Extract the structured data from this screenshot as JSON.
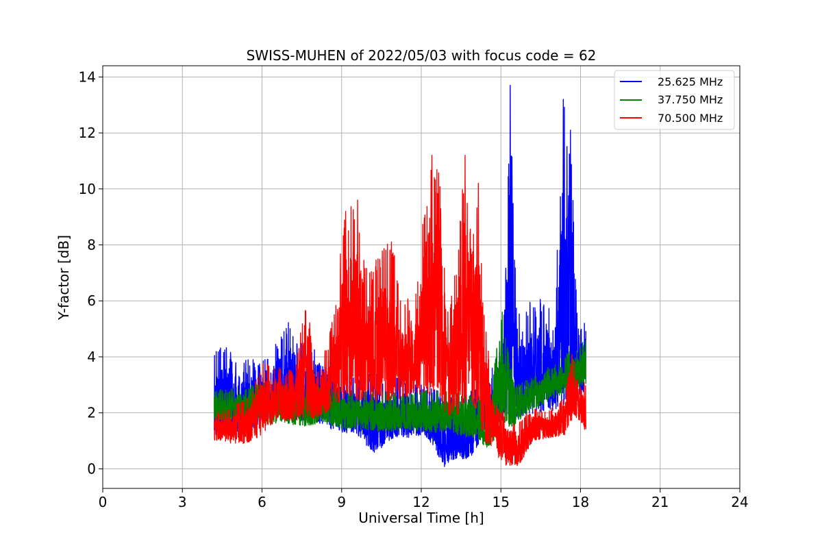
{
  "chart_data": {
    "type": "line",
    "title": "SWISS-MUHEN of 2022/05/03 with focus code = 62",
    "xlabel": "Universal Time [h]",
    "ylabel": "Y-factor [dB]",
    "xlim": [
      0,
      24
    ],
    "ylim": [
      -0.7,
      14.4
    ],
    "x_ticks": [
      "0",
      "3",
      "6",
      "9",
      "12",
      "15",
      "18",
      "21",
      "24"
    ],
    "y_ticks": [
      "0",
      "2",
      "4",
      "6",
      "8",
      "10",
      "12",
      "14"
    ],
    "grid": true,
    "legend_position": "top-right",
    "series": [
      {
        "name": "25.625 MHz",
        "color": "#0000ff",
        "envelope": [
          {
            "x": 4.2,
            "lo": 1.2,
            "hi": 4.1
          },
          {
            "x": 4.6,
            "lo": 1.3,
            "hi": 4.6
          },
          {
            "x": 5.0,
            "lo": 1.2,
            "hi": 4.0
          },
          {
            "x": 5.4,
            "lo": 1.3,
            "hi": 4.2
          },
          {
            "x": 5.8,
            "lo": 1.5,
            "hi": 3.8
          },
          {
            "x": 6.4,
            "lo": 1.8,
            "hi": 4.3
          },
          {
            "x": 7.0,
            "lo": 1.8,
            "hi": 5.3
          },
          {
            "x": 7.6,
            "lo": 1.7,
            "hi": 4.3
          },
          {
            "x": 8.2,
            "lo": 1.6,
            "hi": 4.6
          },
          {
            "x": 8.6,
            "lo": 1.4,
            "hi": 4.0
          },
          {
            "x": 9.0,
            "lo": 1.3,
            "hi": 3.5
          },
          {
            "x": 9.6,
            "lo": 1.2,
            "hi": 3.3
          },
          {
            "x": 10.2,
            "lo": 0.5,
            "hi": 3.5
          },
          {
            "x": 10.8,
            "lo": 1.0,
            "hi": 3.3
          },
          {
            "x": 11.4,
            "lo": 1.1,
            "hi": 3.2
          },
          {
            "x": 12.0,
            "lo": 1.2,
            "hi": 3.0
          },
          {
            "x": 12.5,
            "lo": 0.8,
            "hi": 3.0
          },
          {
            "x": 12.8,
            "lo": 0.0,
            "hi": 2.8
          },
          {
            "x": 13.2,
            "lo": 0.3,
            "hi": 2.6
          },
          {
            "x": 13.6,
            "lo": 0.3,
            "hi": 2.8
          },
          {
            "x": 14.0,
            "lo": 0.5,
            "hi": 2.8
          },
          {
            "x": 14.4,
            "lo": 1.4,
            "hi": 3.2
          },
          {
            "x": 14.8,
            "lo": 1.5,
            "hi": 4.3
          },
          {
            "x": 15.1,
            "lo": 1.6,
            "hi": 4.8
          },
          {
            "x": 15.35,
            "lo": 1.6,
            "hi": 13.7
          },
          {
            "x": 15.6,
            "lo": 1.7,
            "hi": 5.4
          },
          {
            "x": 15.9,
            "lo": 1.8,
            "hi": 6.1
          },
          {
            "x": 16.3,
            "lo": 2.0,
            "hi": 5.9
          },
          {
            "x": 16.7,
            "lo": 2.0,
            "hi": 6.4
          },
          {
            "x": 17.0,
            "lo": 2.1,
            "hi": 4.9
          },
          {
            "x": 17.35,
            "lo": 2.2,
            "hi": 13.2
          },
          {
            "x": 17.62,
            "lo": 2.3,
            "hi": 12.1
          },
          {
            "x": 17.9,
            "lo": 2.6,
            "hi": 5.1
          },
          {
            "x": 18.2,
            "lo": 2.7,
            "hi": 5.3
          }
        ],
        "peaks": [
          {
            "x": 15.35,
            "y": 13.7
          },
          {
            "x": 17.35,
            "y": 13.2
          },
          {
            "x": 17.62,
            "y": 12.1
          }
        ]
      },
      {
        "name": "37.750 MHz",
        "color": "#008000",
        "envelope": [
          {
            "x": 4.2,
            "lo": 1.7,
            "hi": 2.9
          },
          {
            "x": 4.6,
            "lo": 1.6,
            "hi": 2.8
          },
          {
            "x": 5.0,
            "lo": 1.8,
            "hi": 2.9
          },
          {
            "x": 5.6,
            "lo": 1.9,
            "hi": 3.0
          },
          {
            "x": 6.2,
            "lo": 1.6,
            "hi": 3.2
          },
          {
            "x": 7.0,
            "lo": 1.6,
            "hi": 3.0
          },
          {
            "x": 7.6,
            "lo": 1.5,
            "hi": 3.0
          },
          {
            "x": 8.4,
            "lo": 1.6,
            "hi": 3.0
          },
          {
            "x": 9.0,
            "lo": 1.4,
            "hi": 2.9
          },
          {
            "x": 9.8,
            "lo": 1.4,
            "hi": 2.8
          },
          {
            "x": 10.6,
            "lo": 1.3,
            "hi": 2.8
          },
          {
            "x": 11.4,
            "lo": 1.4,
            "hi": 2.7
          },
          {
            "x": 12.2,
            "lo": 1.3,
            "hi": 2.8
          },
          {
            "x": 12.8,
            "lo": 1.3,
            "hi": 2.9
          },
          {
            "x": 13.4,
            "lo": 1.2,
            "hi": 2.8
          },
          {
            "x": 14.0,
            "lo": 1.1,
            "hi": 2.8
          },
          {
            "x": 14.5,
            "lo": 0.7,
            "hi": 2.2
          },
          {
            "x": 15.05,
            "lo": 1.4,
            "hi": 5.6
          },
          {
            "x": 15.5,
            "lo": 1.5,
            "hi": 3.0
          },
          {
            "x": 16.0,
            "lo": 2.0,
            "hi": 3.2
          },
          {
            "x": 16.6,
            "lo": 2.3,
            "hi": 3.5
          },
          {
            "x": 17.2,
            "lo": 2.6,
            "hi": 3.9
          },
          {
            "x": 17.8,
            "lo": 2.8,
            "hi": 4.4
          },
          {
            "x": 18.2,
            "lo": 3.0,
            "hi": 4.6
          }
        ],
        "peaks": [
          {
            "x": 15.05,
            "y": 5.6
          }
        ]
      },
      {
        "name": "70.500 MHz",
        "color": "#ff0000",
        "envelope": [
          {
            "x": 4.2,
            "lo": 1.0,
            "hi": 2.0
          },
          {
            "x": 4.8,
            "lo": 0.9,
            "hi": 2.2
          },
          {
            "x": 5.5,
            "lo": 0.9,
            "hi": 2.6
          },
          {
            "x": 6.0,
            "lo": 1.2,
            "hi": 3.8
          },
          {
            "x": 6.5,
            "lo": 1.7,
            "hi": 3.7
          },
          {
            "x": 7.2,
            "lo": 1.7,
            "hi": 3.5
          },
          {
            "x": 7.7,
            "lo": 1.8,
            "hi": 6.2
          },
          {
            "x": 8.0,
            "lo": 1.8,
            "hi": 3.2
          },
          {
            "x": 8.5,
            "lo": 2.0,
            "hi": 4.6
          },
          {
            "x": 8.8,
            "lo": 2.3,
            "hi": 6.5
          },
          {
            "x": 9.15,
            "lo": 2.5,
            "hi": 9.2
          },
          {
            "x": 9.6,
            "lo": 2.4,
            "hi": 9.6
          },
          {
            "x": 10.0,
            "lo": 2.4,
            "hi": 6.9
          },
          {
            "x": 10.4,
            "lo": 2.3,
            "hi": 7.8
          },
          {
            "x": 10.9,
            "lo": 2.4,
            "hi": 8.3
          },
          {
            "x": 11.3,
            "lo": 2.5,
            "hi": 6.0
          },
          {
            "x": 11.8,
            "lo": 2.5,
            "hi": 6.4
          },
          {
            "x": 12.3,
            "lo": 2.6,
            "hi": 11.2
          },
          {
            "x": 12.7,
            "lo": 2.4,
            "hi": 10.8
          },
          {
            "x": 13.0,
            "lo": 1.8,
            "hi": 5.6
          },
          {
            "x": 13.35,
            "lo": 1.9,
            "hi": 7.8
          },
          {
            "x": 13.65,
            "lo": 2.2,
            "hi": 11.2
          },
          {
            "x": 13.9,
            "lo": 2.2,
            "hi": 8.0
          },
          {
            "x": 14.15,
            "lo": 2.0,
            "hi": 10.2
          },
          {
            "x": 14.3,
            "lo": 1.0,
            "hi": 7.0
          },
          {
            "x": 14.7,
            "lo": 0.6,
            "hi": 2.6
          },
          {
            "x": 15.2,
            "lo": 0.1,
            "hi": 1.9
          },
          {
            "x": 15.7,
            "lo": 0.1,
            "hi": 1.7
          },
          {
            "x": 16.2,
            "lo": 1.0,
            "hi": 2.2
          },
          {
            "x": 16.8,
            "lo": 1.1,
            "hi": 2.1
          },
          {
            "x": 17.4,
            "lo": 1.2,
            "hi": 2.7
          },
          {
            "x": 17.7,
            "lo": 1.8,
            "hi": 4.2
          },
          {
            "x": 18.0,
            "lo": 1.7,
            "hi": 3.3
          },
          {
            "x": 18.2,
            "lo": 1.3,
            "hi": 3.0
          }
        ],
        "peaks": [
          {
            "x": 9.15,
            "y": 9.2
          },
          {
            "x": 9.6,
            "y": 9.6
          },
          {
            "x": 12.4,
            "y": 11.2
          },
          {
            "x": 13.65,
            "y": 11.2
          },
          {
            "x": 14.15,
            "y": 10.2
          }
        ]
      }
    ]
  }
}
